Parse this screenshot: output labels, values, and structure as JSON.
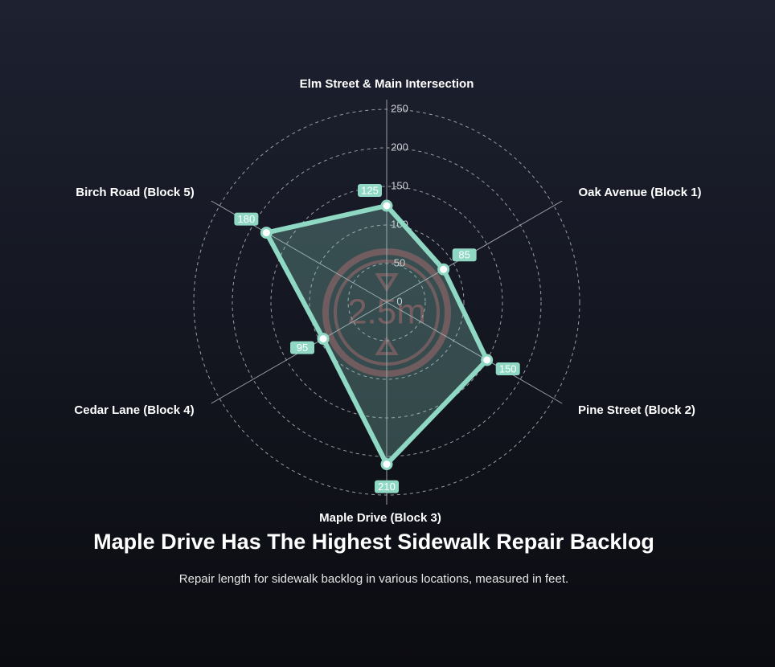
{
  "chart_data": {
    "type": "radar",
    "title": "Maple Drive Has The Highest Sidewalk Repair Backlog",
    "subtitle": "Repair length for sidewalk backlog in various locations, measured in feet.",
    "watermark": "2.5m",
    "categories": [
      "Elm Street & Main Intersection",
      "Oak Avenue (Block 1)",
      "Pine Street (Block 2)",
      "Maple Drive (Block 3)",
      "Cedar Lane (Block 4)",
      "Birch Road (Block 5)"
    ],
    "values": [
      125,
      85,
      150,
      210,
      95,
      180
    ],
    "color": "#8fd9c4",
    "rlim": [
      0,
      250
    ],
    "rticks": [
      0,
      50,
      100,
      150,
      200,
      250
    ],
    "grid": true
  }
}
